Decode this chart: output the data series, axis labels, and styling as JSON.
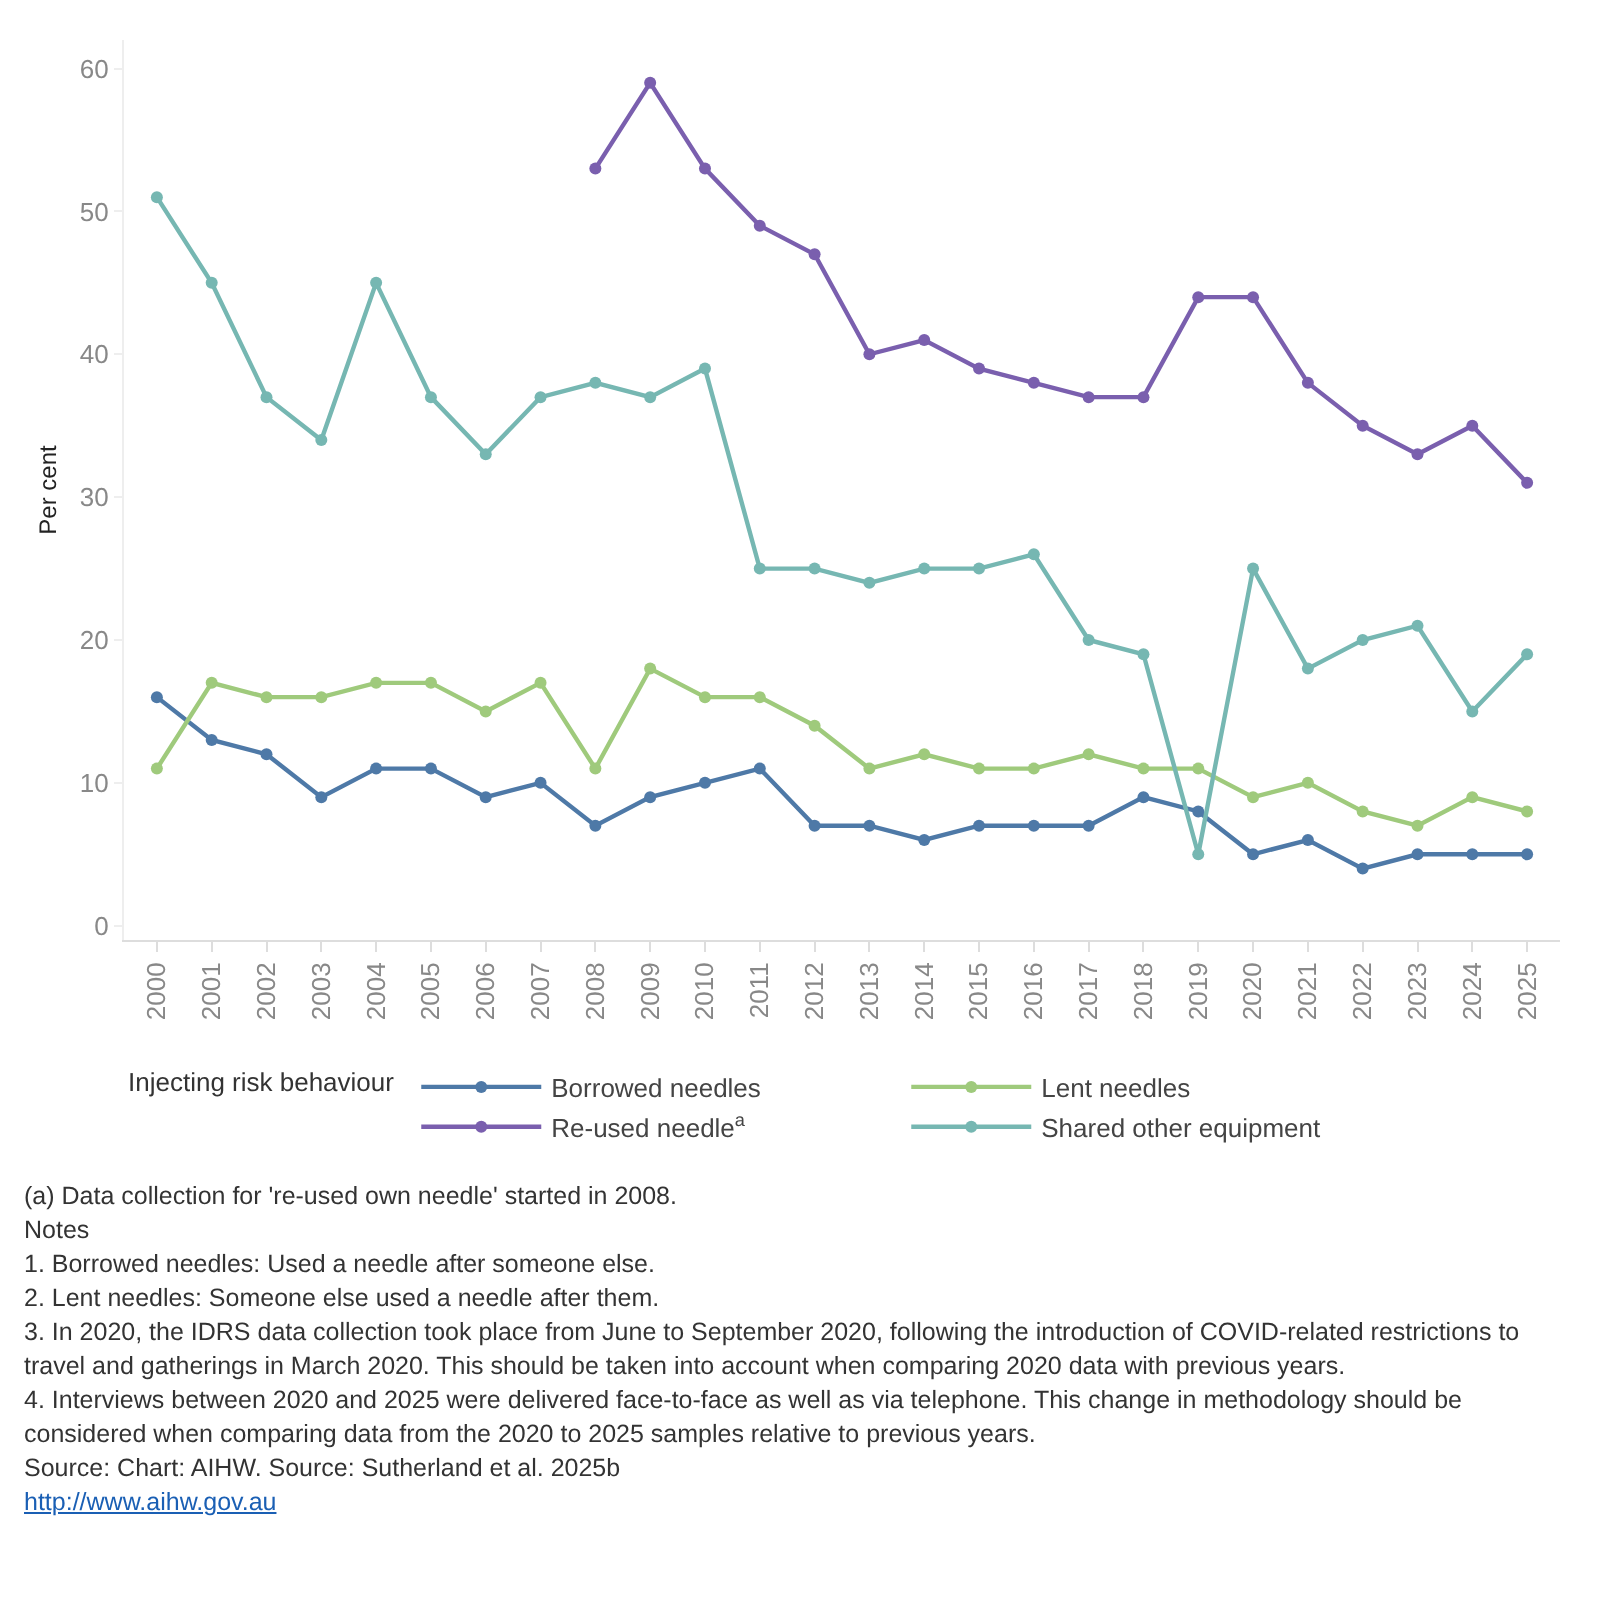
{
  "chart_data": {
    "type": "line",
    "ylabel": "Per cent",
    "legend_title": "Injecting risk behaviour",
    "categories": [
      "2000",
      "2001",
      "2002",
      "2003",
      "2004",
      "2005",
      "2006",
      "2007",
      "2008",
      "2009",
      "2010",
      "2011",
      "2012",
      "2013",
      "2014",
      "2015",
      "2016",
      "2017",
      "2018",
      "2019",
      "2020",
      "2021",
      "2022",
      "2023",
      "2024",
      "2025"
    ],
    "series": [
      {
        "name": "Borrowed needles",
        "color": "#4e79a7",
        "values": [
          16,
          13,
          12,
          9,
          11,
          11,
          9,
          10,
          7,
          9,
          10,
          11,
          7,
          7,
          6,
          7,
          7,
          7,
          9,
          8,
          5,
          6,
          4,
          5,
          5,
          5
        ]
      },
      {
        "name": "Lent needles",
        "color": "#9fca7c",
        "values": [
          11,
          17,
          16,
          16,
          17,
          17,
          15,
          17,
          11,
          18,
          16,
          16,
          14,
          11,
          12,
          11,
          11,
          12,
          11,
          11,
          9,
          10,
          8,
          7,
          9,
          8
        ]
      },
      {
        "name": "Re-used needle$^{a}$",
        "color": "#7a5fae",
        "values": [
          null,
          null,
          null,
          null,
          null,
          null,
          null,
          null,
          53,
          59,
          53,
          49,
          47,
          40,
          41,
          39,
          38,
          37,
          37,
          44,
          44,
          38,
          35,
          33,
          35,
          31
        ]
      },
      {
        "name": "Shared other equipment",
        "color": "#76b7b2",
        "values": [
          51,
          45,
          37,
          34,
          45,
          37,
          33,
          37,
          38,
          37,
          39,
          25,
          25,
          24,
          25,
          25,
          26,
          20,
          19,
          5,
          25,
          18,
          20,
          21,
          15,
          19
        ]
      }
    ],
    "ylim": [
      -1,
      62
    ],
    "yticks": [
      0,
      10,
      20,
      30,
      40,
      50,
      60
    ],
    "grid": false,
    "legend": "bottom",
    "marker": "circle",
    "line_style": "solid",
    "annotations": [
      "(a) Data collection for 're-used own needle' started in 2008.",
      "Notes",
      "1. Borrowed needles: Used a needle after someone else.",
      "2. Lent needles: Someone else used a needle after them.",
      "3. In 2020, the IDRS data collection took place from June to September 2020, following the introduction of COVID-related restrictions to travel and gatherings in March 2020. This should be taken into account when comparing 2020 data with previous years.",
      "4. Interviews between 2020 and 2025 were delivered face-to-face as well as via telephone. This change in methodology should be considered when comparing data from the 2020 to 2025 samples relative to previous years.",
      "Source: Chart: AIHW. Source: Sutherland et al. 2025b",
      "http://www.aihw.gov.au"
    ]
  }
}
